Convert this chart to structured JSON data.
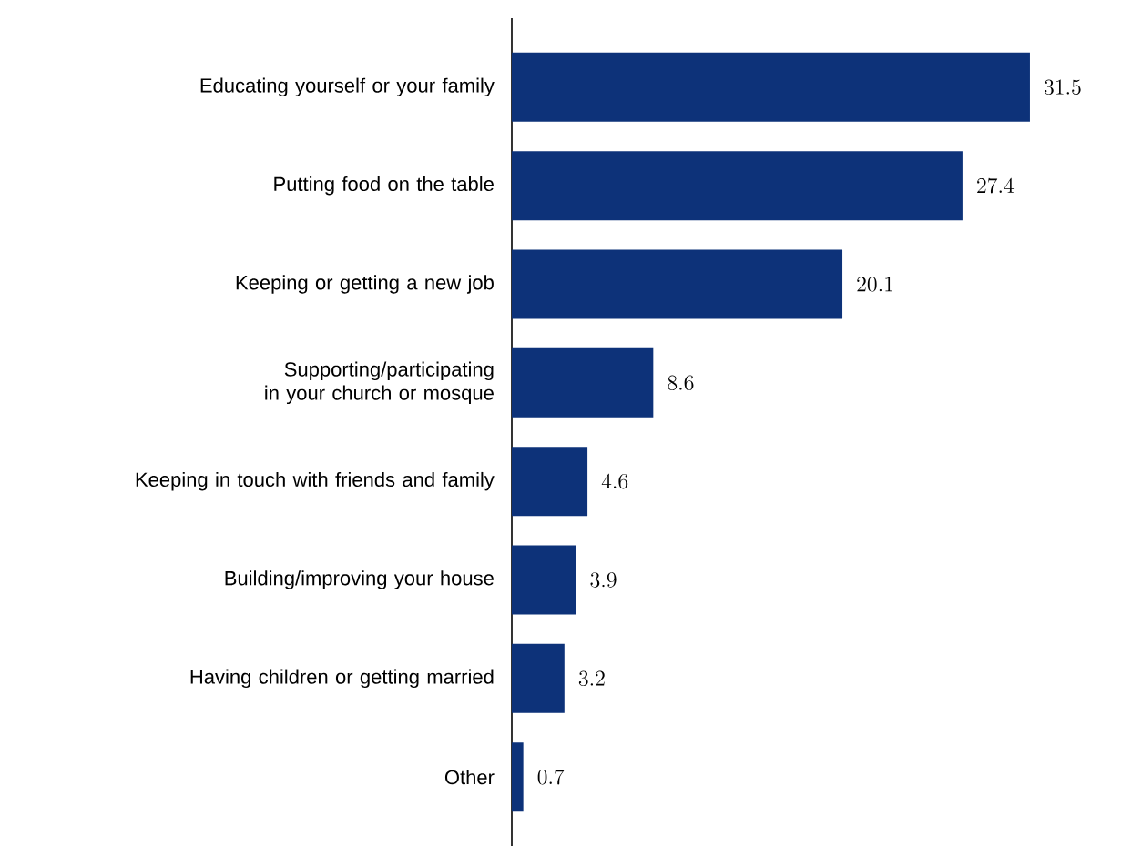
{
  "chart_data": {
    "type": "bar",
    "orientation": "horizontal",
    "categories": [
      "Educating yourself or your family",
      "Putting food on the table",
      "Keeping or getting a new job",
      "Supporting/participating in your church or mosque",
      "Keeping in touch with friends and family",
      "Building/improving your house",
      "Having children or getting married",
      "Other"
    ],
    "values": [
      31.5,
      27.4,
      20.1,
      8.6,
      4.6,
      3.9,
      3.2,
      0.7
    ],
    "color": "#0d3279",
    "data_labels": true
  }
}
